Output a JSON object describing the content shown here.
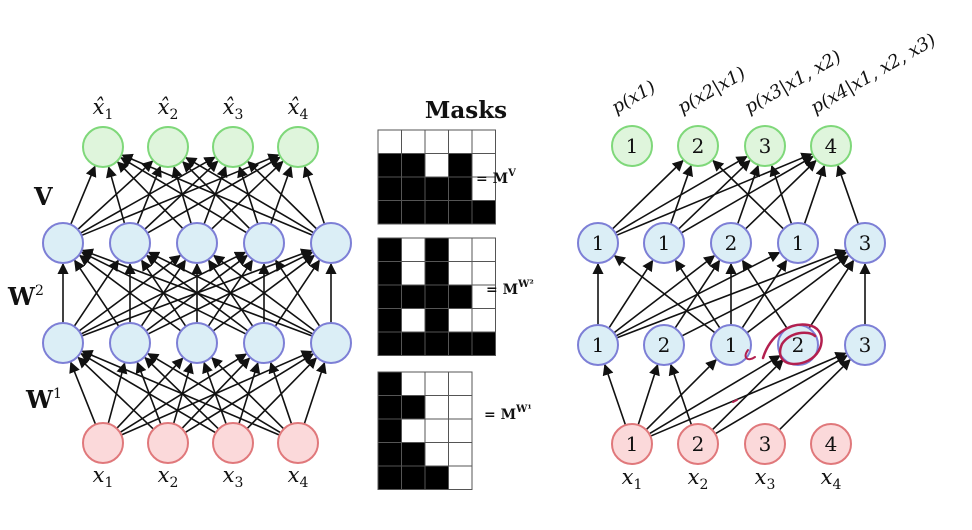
{
  "left": {
    "output_labels": [
      "x̂1",
      "x̂2",
      "x̂3",
      "x̂4"
    ],
    "input_labels": [
      "x1",
      "x2",
      "x3",
      "x4"
    ],
    "weight_labels": {
      "v": "V",
      "w2": "W",
      "w2_sup": "2",
      "w1": "W",
      "w1_sup": "1"
    }
  },
  "masks": {
    "title": "Masks",
    "labels": [
      {
        "main": "= M",
        "sup": "V"
      },
      {
        "main": "= M",
        "sup": "W²"
      },
      {
        "main": "= M",
        "sup": "W¹"
      }
    ],
    "grids": [
      [
        [
          0,
          0,
          0,
          0,
          0
        ],
        [
          1,
          1,
          0,
          1,
          0
        ],
        [
          1,
          1,
          1,
          1,
          0
        ],
        [
          1,
          1,
          1,
          1,
          1
        ]
      ],
      [
        [
          1,
          0,
          1,
          0,
          0
        ],
        [
          1,
          0,
          1,
          0,
          0
        ],
        [
          1,
          1,
          1,
          1,
          0
        ],
        [
          1,
          0,
          1,
          0,
          0
        ],
        [
          1,
          1,
          1,
          1,
          1
        ]
      ],
      [
        [
          1,
          0,
          0,
          0
        ],
        [
          1,
          1,
          0,
          0
        ],
        [
          1,
          0,
          0,
          0
        ],
        [
          1,
          1,
          0,
          0
        ],
        [
          1,
          1,
          1,
          0
        ]
      ]
    ]
  },
  "right": {
    "conditional_labels": [
      "p(x1)",
      "p(x2|x1)",
      "p(x3|x1, x2)",
      "p(x4|x1, x2, x3)"
    ],
    "output_numbers": [
      "1",
      "2",
      "3",
      "4"
    ],
    "hidden2_numbers": [
      "1",
      "1",
      "2",
      "1",
      "3"
    ],
    "hidden1_numbers": [
      "1",
      "2",
      "1",
      "2",
      "3"
    ],
    "input_numbers": [
      "1",
      "2",
      "3",
      "4"
    ],
    "input_labels": [
      "x1",
      "x2",
      "x3",
      "x4"
    ]
  },
  "colors": {
    "green_fill": "#dff5dc",
    "green_stroke": "#7fd87a",
    "blue_fill": "#dbeef6",
    "blue_stroke": "#7d7fd6",
    "red_fill": "#fbd9da",
    "red_stroke": "#e0787b",
    "annotation": "#b3204f"
  }
}
